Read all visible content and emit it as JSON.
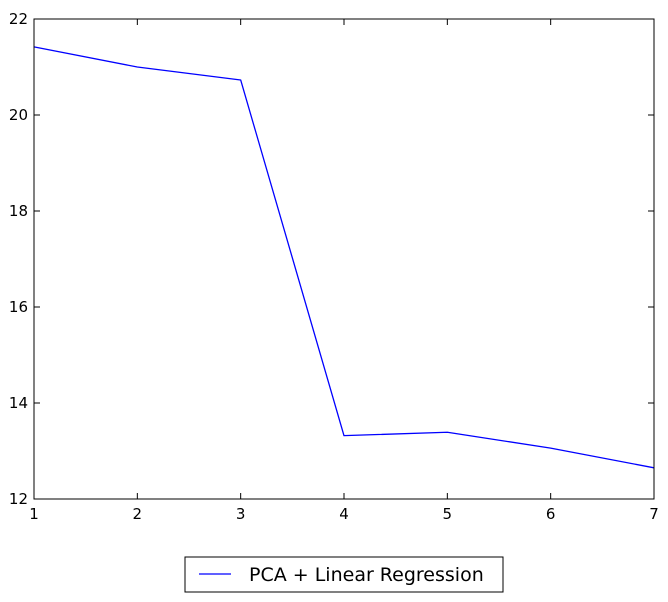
{
  "chart_data": {
    "type": "line",
    "title": "",
    "xlabel": "",
    "ylabel": "",
    "x": [
      1,
      2,
      3,
      4,
      5,
      6,
      7
    ],
    "series": [
      {
        "name": "PCA + Linear Regression",
        "color": "#0000ff",
        "values": [
          21.42,
          21.0,
          20.73,
          13.32,
          13.39,
          13.06,
          12.65
        ]
      }
    ],
    "xlim": [
      1,
      7
    ],
    "ylim": [
      12,
      22
    ],
    "xticks": [
      "1",
      "2",
      "3",
      "4",
      "5",
      "6",
      "7"
    ],
    "yticks": [
      "12",
      "14",
      "16",
      "18",
      "20",
      "22"
    ],
    "grid": false,
    "legend_position": "below plot, center"
  }
}
